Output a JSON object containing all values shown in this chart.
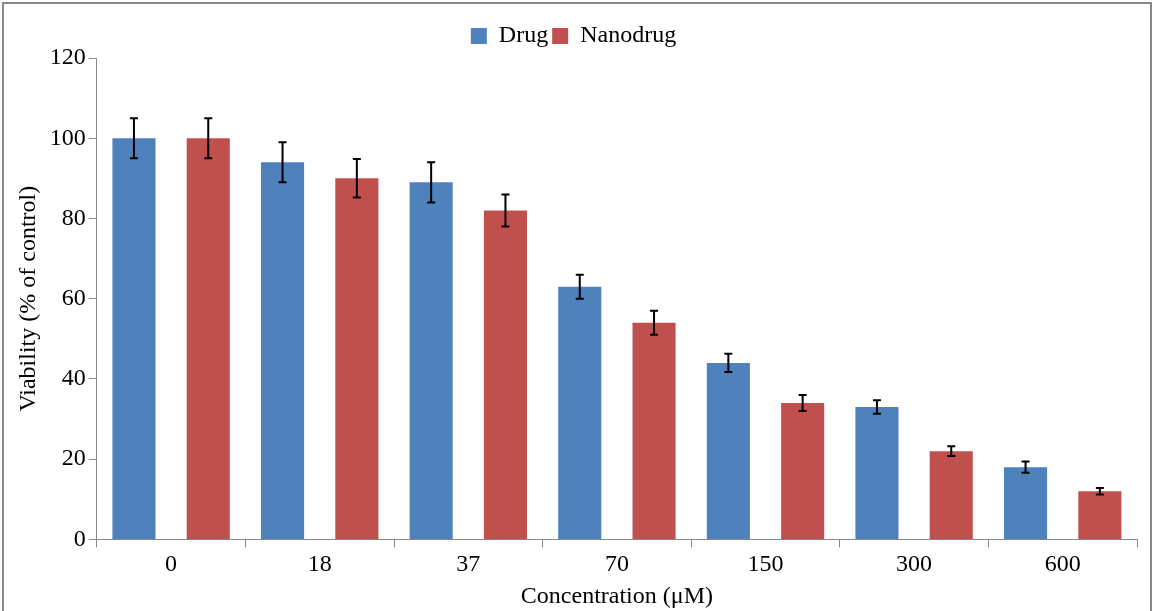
{
  "chart_data": {
    "type": "bar",
    "xlabel": "Concentration (μM)",
    "ylabel": "Viability (% of control)",
    "categories": [
      "0",
      "18",
      "37",
      "70",
      "150",
      "300",
      "600"
    ],
    "series": [
      {
        "name": "Drug",
        "color": "#4f81bd",
        "values": [
          100,
          94,
          89,
          63,
          44,
          33,
          18
        ],
        "errors": [
          5,
          5,
          5,
          3,
          2.3,
          1.7,
          1.4
        ]
      },
      {
        "name": "Nanodrug",
        "color": "#c0504d",
        "values": [
          100,
          90,
          82,
          54,
          34,
          22,
          12
        ],
        "errors": [
          5,
          4.8,
          4,
          3,
          2,
          1.2,
          0.8
        ]
      }
    ],
    "ylim": [
      0,
      120
    ],
    "yticks": [
      0,
      20,
      40,
      60,
      80,
      100,
      120
    ],
    "grid": false,
    "legend": "top"
  }
}
